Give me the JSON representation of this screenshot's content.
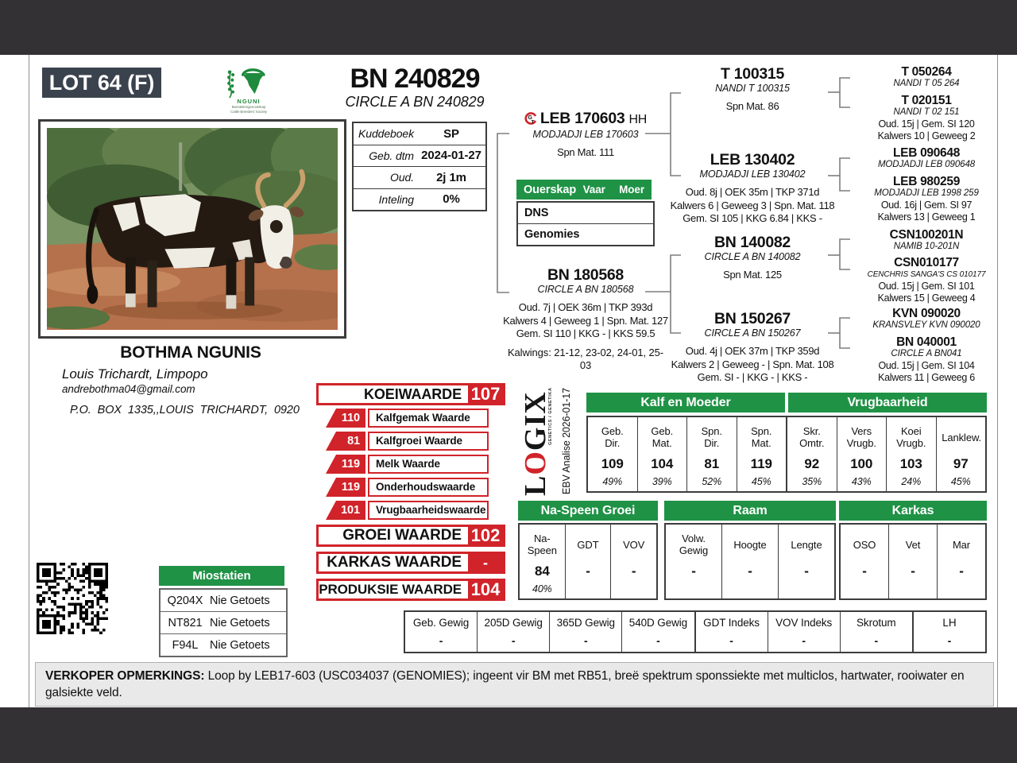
{
  "colors": {
    "green": "#1f9245",
    "red": "#d1232a",
    "slate": "#3a424d",
    "frame_bar": "#343135"
  },
  "header": {
    "lot": "LOT 64 (F)",
    "animal_id": "BN 240829",
    "animal_name": "CIRCLE A BN 240829",
    "society": {
      "name": "NGUNI",
      "line1": "Beestelersgenootskap",
      "line2": "Cattle Breeders' Society"
    }
  },
  "details": {
    "rows": [
      {
        "label": "Kuddeboek",
        "value": "SP"
      },
      {
        "label": "Geb. dtm",
        "value": "2024-01-27"
      },
      {
        "label": "Oud.",
        "value": "2j 1m"
      },
      {
        "label": "Inteling",
        "value": "0%"
      }
    ]
  },
  "parentage": {
    "title": "Ouerskap",
    "col_sire": "Vaar",
    "col_dam": "Moer",
    "rows": [
      "DNS",
      "Genomies"
    ]
  },
  "icons": {
    "gt_g": "G",
    "gt_t": "T"
  },
  "pedigree": {
    "sire": {
      "id": "LEB 170603",
      "horn_status": "HH",
      "reg_name": "MODJADJI LEB 170603",
      "line1": "Spn Mat. 111"
    },
    "dam": {
      "id": "BN 180568",
      "reg_name": "CIRCLE A BN 180568",
      "lines": [
        "Oud. 7j | OEK 36m | TKP 393d",
        "Kalwers 4 | Geweeg 1 | Spn. Mat. 127",
        "Gem. SI 110 | KKG - | KKS 59.5"
      ],
      "kalwings": "Kalwings: 21-12, 23-02, 24-01, 25-03"
    },
    "gp": [
      {
        "id": "T 100315",
        "reg_name": "NANDI T 100315",
        "lines": [
          "Spn Mat. 86"
        ]
      },
      {
        "id": "LEB 130402",
        "reg_name": "MODJADJI LEB 130402",
        "lines": [
          "Oud. 8j | OEK 35m | TKP 371d",
          "Kalwers 6 | Geweeg 3 | Spn. Mat. 118",
          "Gem. SI 105 | KKG 6.84 | KKS -"
        ]
      },
      {
        "id": "BN 140082",
        "reg_name": "CIRCLE A BN 140082",
        "lines": [
          "Spn Mat. 125"
        ]
      },
      {
        "id": "BN 150267",
        "reg_name": "CIRCLE A BN 150267",
        "lines": [
          "Oud. 4j | OEK 37m | TKP 359d",
          "Kalwers 2 | Geweeg - | Spn. Mat. 108",
          "Gem. SI - | KKG - | KKS -"
        ]
      }
    ],
    "ggp": [
      {
        "id": "T 050264",
        "reg_name": "NANDI T 05 264"
      },
      {
        "id": "T 020151",
        "reg_name": "NANDI T 02 151",
        "lines": [
          "Oud. 15j | Gem. SI 120",
          "Kalwers 10 | Geweeg 2"
        ]
      },
      {
        "id": "LEB 090648",
        "reg_name": "MODJADJI LEB 090648"
      },
      {
        "id": "LEB 980259",
        "reg_name": "MODJADJI LEB 1998 259",
        "lines": [
          "Oud. 16j | Gem. SI 97",
          "Kalwers 13 | Geweeg 1"
        ]
      },
      {
        "id": "CSN100201N",
        "reg_name": "NAMIB 10-201N"
      },
      {
        "id": "CSN010177",
        "reg_name": "CENCHRIS SANGA'S CS 010177",
        "lines": [
          "Oud. 15j | Gem. SI 101",
          "Kalwers 15 | Geweeg 4"
        ]
      },
      {
        "id": "KVN 090020",
        "reg_name": "KRANSVLEY KVN 090020"
      },
      {
        "id": "BN 040001",
        "reg_name": "CIRCLE A BN041",
        "lines": [
          "Oud. 15j | Gem. SI 104",
          "Kalwers 11 | Geweeg 6"
        ]
      }
    ]
  },
  "breeder": {
    "name": "BOTHMA NGUNIS",
    "location": "Louis Trichardt, Limpopo",
    "email": "andrebothma04@gmail.com",
    "address": "P.O. BOX 1335,,LOUIS TRICHARDT, 0920"
  },
  "values_panel": {
    "koei_label": "KOEIWAARDE",
    "koei_value": "107",
    "sub": [
      {
        "value": "110",
        "label": "Kalfgemak Waarde"
      },
      {
        "value": "81",
        "label": "Kalfgroei Waarde"
      },
      {
        "value": "119",
        "label": "Melk Waarde"
      },
      {
        "value": "119",
        "label": "Onderhoudswaarde"
      },
      {
        "value": "101",
        "label": "Vrugbaarheidswaarde"
      }
    ],
    "groei_label": "GROEI WAARDE",
    "groei_value": "102",
    "karkas_label": "KARKAS WAARDE",
    "karkas_value": "-",
    "produksie_label": "PRODUKSIE WAARDE",
    "produksie_value": "104"
  },
  "logix": {
    "l": "L",
    "o": "O",
    "gix": "GIX",
    "tagline": "GENETICS / GENETIKA",
    "analysis": "EBV Analise 2026-01-17"
  },
  "ebv_top": {
    "group1": "Kalf en Moeder",
    "group2": "Vrugbaarheid",
    "cols": [
      {
        "label": "Geb. Dir.",
        "value": "109",
        "acc": "49%"
      },
      {
        "label": "Geb. Mat.",
        "value": "104",
        "acc": "39%"
      },
      {
        "label": "Spn. Dir.",
        "value": "81",
        "acc": "52%"
      },
      {
        "label": "Spn. Mat.",
        "value": "119",
        "acc": "45%"
      },
      {
        "label": "Skr. Omtr.",
        "value": "92",
        "acc": "35%"
      },
      {
        "label": "Vers Vrugb.",
        "value": "100",
        "acc": "43%"
      },
      {
        "label": "Koei Vrugb.",
        "value": "103",
        "acc": "24%"
      },
      {
        "label": "Lanklew.",
        "value": "97",
        "acc": "45%"
      }
    ]
  },
  "ebv_mid": {
    "group1": "Na-Speen Groei",
    "group2": "Raam",
    "group3": "Karkas",
    "cols": [
      {
        "label": "Na-Speen",
        "value": "84",
        "acc": "40%"
      },
      {
        "label": "GDT",
        "value": "-"
      },
      {
        "label": "VOV",
        "value": "-"
      },
      {
        "label": "Volw. Gewig",
        "value": "-"
      },
      {
        "label": "Hoogte",
        "value": "-"
      },
      {
        "label": "Lengte",
        "value": "-"
      },
      {
        "label": "OSO",
        "value": "-"
      },
      {
        "label": "Vet",
        "value": "-"
      },
      {
        "label": "Mar",
        "value": "-"
      }
    ]
  },
  "weights": {
    "cols": [
      {
        "label": "Geb. Gewig",
        "value": "-"
      },
      {
        "label": "205D Gewig",
        "value": "-"
      },
      {
        "label": "365D Gewig",
        "value": "-"
      },
      {
        "label": "540D Gewig",
        "value": "-"
      },
      {
        "label": "GDT Indeks",
        "value": "-"
      },
      {
        "label": "VOV Indeks",
        "value": "-"
      },
      {
        "label": "Skrotum",
        "value": "-"
      },
      {
        "label": "LH",
        "value": "-"
      }
    ]
  },
  "miostatien": {
    "title": "Miostatien",
    "rows": [
      {
        "code": "Q204X",
        "result": "Nie Getoets"
      },
      {
        "code": "NT821",
        "result": "Nie Getoets"
      },
      {
        "code": "F94L",
        "result": "Nie Getoets"
      }
    ]
  },
  "remarks": {
    "label": "VERKOPER OPMERKINGS:",
    "text": "Loop by LEB17-603 (USC034037 (GENOMIES); ingeent vir BM met RB51, breë spektrum sponssiekte met multiclos, hartwater, rooiwater en galsiekte veld."
  }
}
